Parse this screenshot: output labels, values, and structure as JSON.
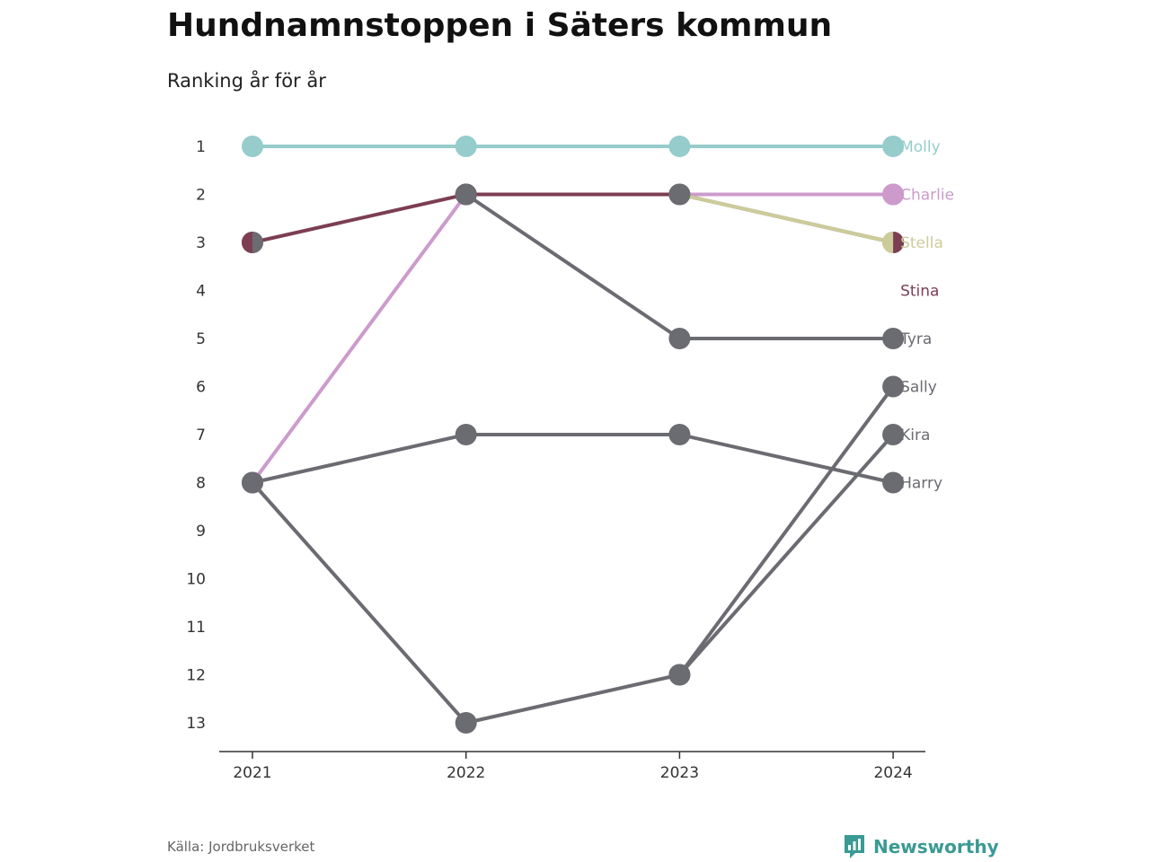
{
  "chart_data": {
    "type": "line",
    "title": "Hundnamnstoppen i Säters kommun",
    "subtitle": "Ranking år för år",
    "x": [
      "2021",
      "2022",
      "2023",
      "2024"
    ],
    "y_ticks": [
      "1",
      "2",
      "3",
      "4",
      "5",
      "6",
      "7",
      "8",
      "9",
      "10",
      "11",
      "12",
      "13"
    ],
    "ylim": [
      1,
      13
    ],
    "y_reversed": true,
    "grid": false,
    "series": [
      {
        "name": "Molly",
        "values": [
          1,
          1,
          1,
          1
        ],
        "color": "#96cccb",
        "highlight": true
      },
      {
        "name": "Charlie",
        "values": [
          8,
          2,
          2,
          2
        ],
        "color": "#cc9bcc",
        "highlight": true
      },
      {
        "name": "Stella",
        "values": [
          null,
          null,
          2,
          3
        ],
        "color": "#cccc9a",
        "highlight": true
      },
      {
        "name": "Stina",
        "values": [
          3,
          2,
          2,
          3
        ],
        "color": "#7c3e52",
        "highlight": true
      },
      {
        "name": "Tyra",
        "values": [
          null,
          2,
          5,
          5
        ],
        "color": "#6b6b72",
        "highlight": false
      },
      {
        "name": "Sally",
        "values": [
          8,
          13,
          12,
          6
        ],
        "color": "#6b6b72",
        "highlight": false
      },
      {
        "name": "Kira",
        "values": [
          null,
          null,
          12,
          7
        ],
        "color": "#6b6b72",
        "highlight": false
      },
      {
        "name": "Harry",
        "values": [
          8,
          7,
          7,
          8
        ],
        "color": "#6b6b72",
        "highlight": false
      }
    ]
  },
  "footer": {
    "source": "Källa: Jordbruksverket",
    "brand": "Newsworthy",
    "brand_color": "#3a9a94"
  }
}
